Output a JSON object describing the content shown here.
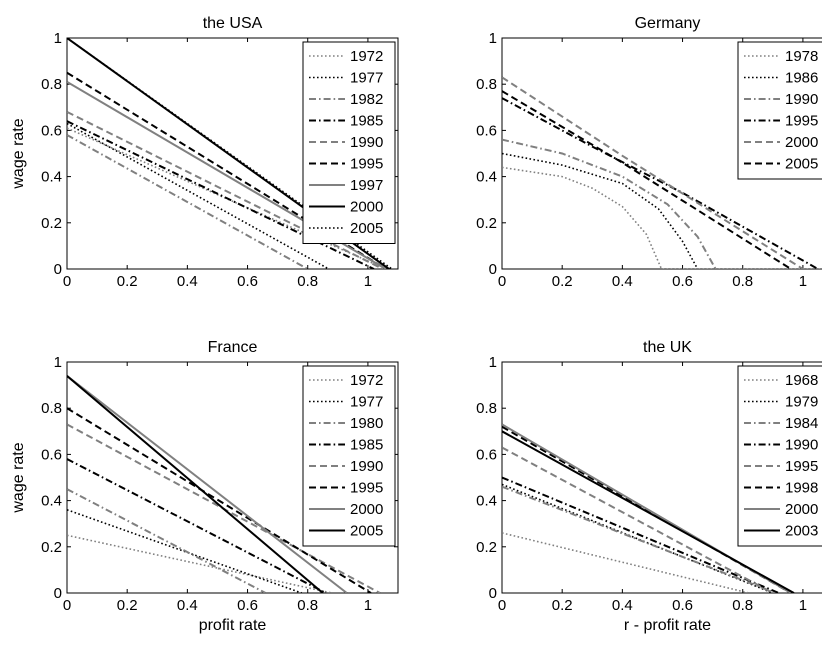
{
  "chart_data": [
    {
      "type": "line",
      "title": "the USA",
      "xlabel": "",
      "ylabel": "wage rate",
      "xlim": [
        0,
        1.1
      ],
      "ylim": [
        0,
        1
      ],
      "xticks": [
        "0",
        "0.2",
        "0.4",
        "0.6",
        "0.8",
        "1"
      ],
      "yticks": [
        "0",
        "0.2",
        "0.4",
        "0.6",
        "0.8",
        "1"
      ],
      "legend": "top-right",
      "series": [
        {
          "name": "1972",
          "style": "dotted",
          "color": "#808080",
          "points": [
            [
              0,
              0.61
            ],
            [
              1.06,
              0
            ]
          ]
        },
        {
          "name": "1977",
          "style": "dotted",
          "color": "#000000",
          "points": [
            [
              0,
              0.63
            ],
            [
              0.87,
              0
            ]
          ]
        },
        {
          "name": "1982",
          "style": "dashdot",
          "color": "#808080",
          "points": [
            [
              0,
              0.58
            ],
            [
              0.8,
              0
            ]
          ]
        },
        {
          "name": "1985",
          "style": "dashdot",
          "color": "#000000",
          "points": [
            [
              0,
              0.64
            ],
            [
              1.02,
              0
            ]
          ]
        },
        {
          "name": "1990",
          "style": "dashed",
          "color": "#808080",
          "points": [
            [
              0,
              0.68
            ],
            [
              1.05,
              0
            ]
          ]
        },
        {
          "name": "1995",
          "style": "dashed",
          "color": "#000000",
          "points": [
            [
              0,
              0.85
            ],
            [
              1.06,
              0
            ]
          ]
        },
        {
          "name": "1997",
          "style": "solid",
          "color": "#808080",
          "points": [
            [
              0,
              0.81
            ],
            [
              1.06,
              0
            ]
          ]
        },
        {
          "name": "2000",
          "style": "solid",
          "color": "#000000",
          "points": [
            [
              0,
              1.0
            ],
            [
              1.07,
              0
            ]
          ]
        },
        {
          "name": "2005",
          "style": "dotted",
          "color": "#000000",
          "points": [
            [
              0,
              1.0
            ],
            [
              1.08,
              0
            ]
          ]
        }
      ]
    },
    {
      "type": "line",
      "title": "Germany",
      "xlabel": "",
      "ylabel": "",
      "xlim": [
        0,
        1.1
      ],
      "ylim": [
        0,
        1
      ],
      "xticks": [
        "0",
        "0.2",
        "0.4",
        "0.6",
        "0.8",
        "1"
      ],
      "yticks": [
        "0",
        "0.2",
        "0.4",
        "0.6",
        "0.8",
        "1"
      ],
      "legend": "top-right",
      "series": [
        {
          "name": "1978",
          "style": "dotted",
          "color": "#808080",
          "points": [
            [
              0,
              0.44
            ],
            [
              0.2,
              0.4
            ],
            [
              0.3,
              0.35
            ],
            [
              0.4,
              0.27
            ],
            [
              0.48,
              0.15
            ],
            [
              0.53,
              0
            ],
            [
              1.1,
              0
            ]
          ]
        },
        {
          "name": "1986",
          "style": "dotted",
          "color": "#000000",
          "points": [
            [
              0,
              0.5
            ],
            [
              0.2,
              0.45
            ],
            [
              0.4,
              0.37
            ],
            [
              0.52,
              0.26
            ],
            [
              0.6,
              0.12
            ],
            [
              0.65,
              0
            ]
          ]
        },
        {
          "name": "1990",
          "style": "dashdot",
          "color": "#808080",
          "points": [
            [
              0,
              0.56
            ],
            [
              0.2,
              0.5
            ],
            [
              0.4,
              0.4
            ],
            [
              0.55,
              0.28
            ],
            [
              0.65,
              0.14
            ],
            [
              0.71,
              0
            ]
          ]
        },
        {
          "name": "1995",
          "style": "dashdot",
          "color": "#000000",
          "points": [
            [
              0,
              0.74
            ],
            [
              0.3,
              0.53
            ],
            [
              0.6,
              0.33
            ],
            [
              1.05,
              0
            ]
          ]
        },
        {
          "name": "2000",
          "style": "dashed",
          "color": "#808080",
          "points": [
            [
              0,
              0.83
            ],
            [
              0.4,
              0.49
            ],
            [
              1.0,
              0
            ]
          ]
        },
        {
          "name": "2005",
          "style": "dashed",
          "color": "#000000",
          "points": [
            [
              0,
              0.77
            ],
            [
              0.4,
              0.46
            ],
            [
              0.96,
              0
            ]
          ]
        }
      ]
    },
    {
      "type": "line",
      "title": "France",
      "xlabel": "profit rate",
      "ylabel": "wage rate",
      "xlim": [
        0,
        1.1
      ],
      "ylim": [
        0,
        1
      ],
      "xticks": [
        "0",
        "0.2",
        "0.4",
        "0.6",
        "0.8",
        "1"
      ],
      "yticks": [
        "0",
        "0.2",
        "0.4",
        "0.6",
        "0.8",
        "1"
      ],
      "legend": "top-right",
      "series": [
        {
          "name": "1972",
          "style": "dotted",
          "color": "#808080",
          "points": [
            [
              0,
              0.25
            ],
            [
              0.88,
              0
            ]
          ]
        },
        {
          "name": "1977",
          "style": "dotted",
          "color": "#000000",
          "points": [
            [
              0,
              0.36
            ],
            [
              0.78,
              0
            ]
          ]
        },
        {
          "name": "1980",
          "style": "dashdot",
          "color": "#808080",
          "points": [
            [
              0,
              0.45
            ],
            [
              0.66,
              0
            ]
          ]
        },
        {
          "name": "1985",
          "style": "dashdot",
          "color": "#000000",
          "points": [
            [
              0,
              0.58
            ],
            [
              0.86,
              0
            ]
          ]
        },
        {
          "name": "1990",
          "style": "dashed",
          "color": "#808080",
          "points": [
            [
              0,
              0.73
            ],
            [
              1.04,
              0
            ]
          ]
        },
        {
          "name": "1995",
          "style": "dashed",
          "color": "#000000",
          "points": [
            [
              0,
              0.8
            ],
            [
              1.01,
              0
            ]
          ]
        },
        {
          "name": "2000",
          "style": "solid",
          "color": "#808080",
          "points": [
            [
              0,
              0.94
            ],
            [
              0.93,
              0
            ]
          ]
        },
        {
          "name": "2005",
          "style": "solid",
          "color": "#000000",
          "points": [
            [
              0,
              0.94
            ],
            [
              0.85,
              0
            ]
          ]
        }
      ]
    },
    {
      "type": "line",
      "title": "the UK",
      "xlabel": "r - profit rate",
      "ylabel": "",
      "xlim": [
        0,
        1.1
      ],
      "ylim": [
        0,
        1
      ],
      "xticks": [
        "0",
        "0.2",
        "0.4",
        "0.6",
        "0.8",
        "1"
      ],
      "yticks": [
        "0",
        "0.2",
        "0.4",
        "0.6",
        "0.8",
        "1"
      ],
      "legend": "top-right",
      "series": [
        {
          "name": "1968",
          "style": "dotted",
          "color": "#808080",
          "points": [
            [
              0,
              0.26
            ],
            [
              0.82,
              0
            ]
          ]
        },
        {
          "name": "1979",
          "style": "dotted",
          "color": "#000000",
          "points": [
            [
              0,
              0.47
            ],
            [
              0.9,
              0
            ]
          ]
        },
        {
          "name": "1984",
          "style": "dashdot",
          "color": "#808080",
          "points": [
            [
              0,
              0.46
            ],
            [
              0.91,
              0
            ]
          ]
        },
        {
          "name": "1990",
          "style": "dashdot",
          "color": "#000000",
          "points": [
            [
              0,
              0.5
            ],
            [
              0.92,
              0
            ]
          ]
        },
        {
          "name": "1995",
          "style": "dashed",
          "color": "#808080",
          "points": [
            [
              0,
              0.63
            ],
            [
              0.9,
              0
            ]
          ]
        },
        {
          "name": "1998",
          "style": "dashed",
          "color": "#000000",
          "points": [
            [
              0,
              0.72
            ],
            [
              0.96,
              0
            ]
          ]
        },
        {
          "name": "2000",
          "style": "solid",
          "color": "#808080",
          "points": [
            [
              0,
              0.73
            ],
            [
              0.96,
              0
            ]
          ]
        },
        {
          "name": "2003",
          "style": "solid",
          "color": "#000000",
          "points": [
            [
              0,
              0.7
            ],
            [
              0.97,
              0
            ]
          ]
        }
      ]
    }
  ]
}
